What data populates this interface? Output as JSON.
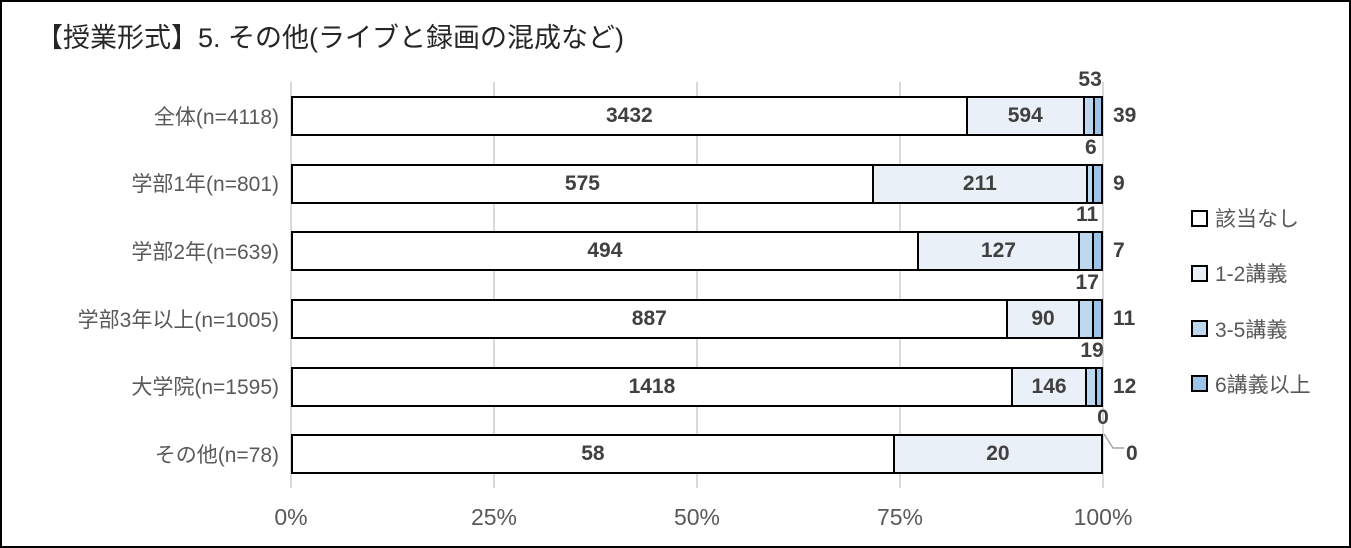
{
  "title": "【授業形式】5. その他(ライブと録画の混成など)",
  "colors": {
    "background": "#FFFFFF",
    "frame_border": "#000000",
    "bar_border": "#000000",
    "gridline": "#D9D9D9",
    "axis_text": "#595959",
    "category_text": "#595959",
    "data_label": "#404040",
    "title_text": "#262626",
    "leader_line": "#A6A6A6"
  },
  "chart_data": {
    "type": "bar",
    "variant": "100pct-stacked-horizontal",
    "title": "【授業形式】5. その他(ライブと録画の混成など)",
    "categories": [
      "全体(n=4118)",
      "学部1年(n=801)",
      "学部2年(n=639)",
      "学部3年以上(n=1005)",
      "大学院(n=1595)",
      "その他(n=78)"
    ],
    "series": [
      {
        "name": "該当なし",
        "color": "#FFFFFF",
        "values": [
          3432,
          575,
          494,
          887,
          1418,
          58
        ]
      },
      {
        "name": "1-2講義",
        "color": "#E9F0F8",
        "values": [
          594,
          211,
          127,
          90,
          146,
          20
        ]
      },
      {
        "name": "3-5講義",
        "color": "#BDD7EE",
        "values": [
          53,
          6,
          11,
          17,
          19,
          0
        ]
      },
      {
        "name": "6講義以上",
        "color": "#9DC3E6",
        "values": [
          39,
          9,
          7,
          11,
          12,
          0
        ]
      }
    ],
    "x_ticks": [
      "0%",
      "25%",
      "50%",
      "75%",
      "100%"
    ],
    "xlim": [
      0,
      100
    ],
    "gridlines": true,
    "legend_position": "right",
    "label_placement": {
      "該当なし": "inside-center",
      "1-2講義": "inside-center",
      "3-5講義": "above-bar-end",
      "6講義以上": "outside-right"
    }
  }
}
